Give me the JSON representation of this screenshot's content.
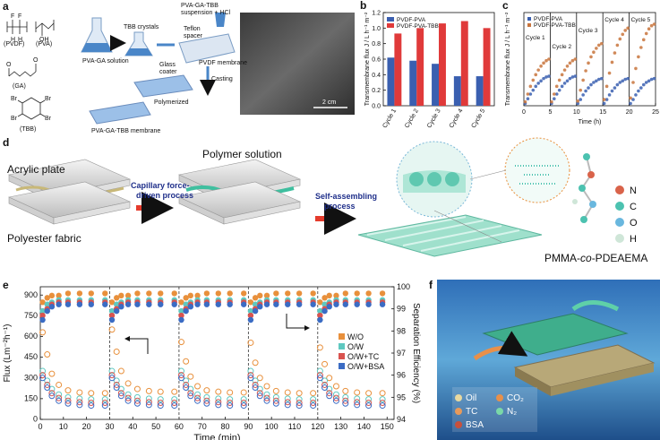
{
  "panel_labels": [
    "a",
    "b",
    "c",
    "d",
    "e",
    "f"
  ],
  "panel_a": {
    "monomers": [
      "(PVDF)",
      "(PVA)",
      "(GA)",
      "(TBB)"
    ],
    "atoms": [
      "F",
      "F",
      "H",
      "H",
      "OH",
      "O",
      "O",
      "Br",
      "Br",
      "Br",
      "Br"
    ],
    "steps": {
      "tbb": "TBB crystals",
      "solution": "PVA-GA solution",
      "suspension": [
        "PVA-GA-TBB",
        "suspension + HCl"
      ],
      "spacer": [
        "Teflon",
        "spacer"
      ],
      "coater": [
        "Glass",
        "coater"
      ],
      "membrane": "PVDF membrane",
      "casting": "Casting",
      "polymerized": "Polymerized",
      "product": "PVA-GA-TBB membrane"
    },
    "scale_bar": "2 cm"
  },
  "panel_d": {
    "labels": [
      "Acrylic plate",
      "Polyester fabric",
      "Polymer solution"
    ],
    "capillary": [
      "Capillary force-",
      "driven process"
    ],
    "assembling": [
      "Self-assembling",
      "process"
    ],
    "polymer": [
      "PMMA-",
      "co",
      "-PDEAEMA"
    ],
    "elements": [
      {
        "symbol": "N",
        "color": "#d9634a"
      },
      {
        "symbol": "C",
        "color": "#4cc2b0"
      },
      {
        "symbol": "O",
        "color": "#69b7de"
      },
      {
        "symbol": "H",
        "color": "#cfe6d8"
      }
    ]
  },
  "panel_f": {
    "legend": [
      {
        "label": "Oil",
        "color": "#e8d9a0"
      },
      {
        "label": "TC",
        "color": "#e89a5a"
      },
      {
        "label": "BSA",
        "color": "#c8503c"
      },
      {
        "label": "CO₂",
        "color": "#e8904a"
      },
      {
        "label": "N₂",
        "color": "#7ad8a8"
      }
    ]
  },
  "chart_data": [
    {
      "type": "bar",
      "categories": [
        "Cycle 1",
        "Cycle 2",
        "Cycle 3",
        "Cycle 4",
        "Cycle 5"
      ],
      "series": [
        {
          "name": "PVDF-PVA",
          "color": "#3a5fb0",
          "values": [
            0.62,
            0.58,
            0.54,
            0.38,
            0.38
          ]
        },
        {
          "name": "PVDF-PVA-TBB",
          "color": "#e03a3a",
          "values": [
            0.93,
            1.0,
            1.06,
            1.09,
            1.0
          ]
        }
      ],
      "y_label": "Transmembrane flux J / L h⁻¹ m⁻²",
      "ylim": [
        0,
        1.2
      ],
      "yticks": [
        {
          "value": 0,
          "label": "0.0"
        },
        0.2,
        0.4,
        0.6,
        0.8,
        {
          "value": 1,
          "label": "1.0"
        },
        1.2
      ],
      "legend": "upper left"
    },
    {
      "type": "line",
      "x_label": "Time (h)",
      "y_label": "Transmembrane flux J / L h⁻¹ m⁻²",
      "annotations": [
        "Cycle 1",
        "Cycle 2",
        "Cycle 3",
        "Cycle 4",
        "Cycle 5"
      ],
      "x": [
        0.25,
        0.75,
        1.25,
        1.75,
        2.25,
        2.75,
        3.25,
        3.75,
        4.25,
        4.75,
        5.25,
        5.75,
        6.25,
        6.75,
        7.25,
        7.75,
        8.25,
        8.75,
        9.25,
        9.75,
        10.25,
        10.75,
        11.25,
        11.75,
        12.25,
        12.75,
        13.25,
        13.75,
        14.25,
        14.75,
        15.25,
        15.75,
        16.25,
        16.75,
        17.25,
        17.75,
        18.25,
        18.75,
        19.25,
        19.75,
        20.25,
        20.75,
        21.25,
        21.75,
        22.25,
        22.75,
        23.25,
        23.75,
        24.25,
        24.75
      ],
      "series": [
        {
          "name": "PVDF-PVA",
          "color": "#3a5fb0",
          "values": [
            0.03,
            0.09,
            0.15,
            0.2,
            0.25,
            0.29,
            0.32,
            0.35,
            0.37,
            0.38,
            0.03,
            0.09,
            0.15,
            0.2,
            0.25,
            0.29,
            0.32,
            0.35,
            0.37,
            0.38,
            0.03,
            0.08,
            0.14,
            0.19,
            0.23,
            0.27,
            0.3,
            0.32,
            0.34,
            0.35,
            0.03,
            0.08,
            0.14,
            0.19,
            0.23,
            0.27,
            0.3,
            0.32,
            0.34,
            0.35,
            0.03,
            0.08,
            0.14,
            0.19,
            0.23,
            0.27,
            0.3,
            0.32,
            0.34,
            0.35
          ]
        },
        {
          "name": "PVDF-PVA-TBB",
          "color": "#c8743c",
          "values": [
            0.05,
            0.15,
            0.25,
            0.33,
            0.4,
            0.46,
            0.51,
            0.55,
            0.58,
            0.6,
            0.05,
            0.15,
            0.25,
            0.33,
            0.4,
            0.46,
            0.51,
            0.55,
            0.58,
            0.6,
            0.06,
            0.2,
            0.33,
            0.45,
            0.55,
            0.63,
            0.69,
            0.74,
            0.78,
            0.8,
            0.08,
            0.25,
            0.42,
            0.56,
            0.68,
            0.78,
            0.86,
            0.92,
            0.97,
            1.0,
            0.1,
            0.3,
            0.48,
            0.63,
            0.75,
            0.85,
            0.93,
            0.99,
            1.03,
            1.05
          ]
        }
      ],
      "xlim": [
        0,
        25
      ],
      "xticks": [
        0,
        5,
        10,
        15,
        20,
        25
      ],
      "ylim": [
        0,
        1.2
      ],
      "legend": "upper left"
    },
    {
      "type": "line",
      "x_label": "Time (min)",
      "y_label": "Flux (Lm⁻²h⁻¹)",
      "y2_label": "Separation Efficiency (%)",
      "x": [
        1,
        3,
        5,
        8,
        12,
        17,
        22,
        28,
        31,
        33,
        35,
        38,
        42,
        47,
        52,
        58,
        61,
        63,
        65,
        68,
        72,
        77,
        82,
        88,
        91,
        93,
        95,
        98,
        102,
        107,
        112,
        118,
        121,
        123,
        125,
        128,
        132,
        137,
        142,
        148
      ],
      "series": [
        {
          "name": "W/O",
          "color": "#e8903c",
          "values": [
            630,
            470,
            330,
            250,
            210,
            195,
            190,
            190,
            650,
            490,
            350,
            260,
            220,
            205,
            200,
            200,
            560,
            420,
            310,
            240,
            210,
            200,
            195,
            195,
            555,
            410,
            300,
            240,
            205,
            195,
            190,
            190,
            520,
            400,
            300,
            240,
            205,
            195,
            190,
            190
          ],
          "efficiency": [
            99.3,
            99.5,
            99.6,
            99.6,
            99.7,
            99.7,
            99.7,
            99.7,
            99.3,
            99.5,
            99.6,
            99.6,
            99.7,
            99.7,
            99.7,
            99.7,
            99.3,
            99.5,
            99.6,
            99.6,
            99.7,
            99.7,
            99.7,
            99.7,
            99.3,
            99.5,
            99.6,
            99.6,
            99.7,
            99.7,
            99.7,
            99.7,
            99.3,
            99.5,
            99.6,
            99.6,
            99.7,
            99.7,
            99.7,
            99.7
          ]
        },
        {
          "name": "O/W",
          "color": "#5fc8c0",
          "values": [
            350,
            280,
            220,
            180,
            160,
            150,
            145,
            145,
            350,
            280,
            220,
            180,
            160,
            150,
            145,
            145,
            350,
            280,
            220,
            180,
            160,
            150,
            145,
            145,
            350,
            280,
            220,
            180,
            160,
            150,
            145,
            145,
            350,
            280,
            220,
            180,
            160,
            150,
            145,
            145
          ],
          "efficiency": [
            98.9,
            99.2,
            99.3,
            99.4,
            99.4,
            99.4,
            99.4,
            99.4,
            98.9,
            99.2,
            99.3,
            99.4,
            99.4,
            99.4,
            99.4,
            99.4,
            98.9,
            99.2,
            99.3,
            99.4,
            99.4,
            99.4,
            99.4,
            99.4,
            98.9,
            99.2,
            99.3,
            99.4,
            99.4,
            99.4,
            99.4,
            99.4,
            98.9,
            99.2,
            99.3,
            99.4,
            99.4,
            99.4,
            99.4,
            99.4
          ]
        },
        {
          "name": "O/W+TC",
          "color": "#d9534f",
          "values": [
            320,
            250,
            190,
            155,
            135,
            125,
            120,
            120,
            320,
            250,
            190,
            155,
            135,
            125,
            120,
            120,
            320,
            250,
            190,
            155,
            135,
            125,
            120,
            120,
            320,
            250,
            190,
            155,
            135,
            125,
            120,
            120,
            320,
            250,
            190,
            155,
            135,
            125,
            120,
            120
          ],
          "efficiency": [
            98.7,
            99.0,
            99.2,
            99.3,
            99.3,
            99.3,
            99.3,
            99.3,
            98.7,
            99.0,
            99.2,
            99.3,
            99.3,
            99.3,
            99.3,
            99.3,
            98.7,
            99.0,
            99.2,
            99.3,
            99.3,
            99.3,
            99.3,
            99.3,
            98.7,
            99.0,
            99.2,
            99.3,
            99.3,
            99.3,
            99.3,
            99.3,
            98.7,
            99.0,
            99.2,
            99.3,
            99.3,
            99.3,
            99.3,
            99.3
          ]
        },
        {
          "name": "O/W+BSA",
          "color": "#3b6cc4",
          "values": [
            300,
            230,
            170,
            135,
            115,
            105,
            100,
            100,
            300,
            230,
            170,
            135,
            115,
            105,
            100,
            100,
            300,
            230,
            170,
            135,
            115,
            105,
            100,
            100,
            300,
            230,
            170,
            135,
            115,
            105,
            100,
            100,
            300,
            230,
            170,
            135,
            115,
            105,
            100,
            100
          ],
          "efficiency": [
            98.5,
            98.9,
            99.1,
            99.2,
            99.2,
            99.2,
            99.2,
            99.2,
            98.5,
            98.9,
            99.1,
            99.2,
            99.2,
            99.2,
            99.2,
            99.2,
            98.5,
            98.9,
            99.1,
            99.2,
            99.2,
            99.2,
            99.2,
            99.2,
            98.5,
            98.9,
            99.1,
            99.2,
            99.2,
            99.2,
            99.2,
            99.2,
            98.5,
            98.9,
            99.1,
            99.2,
            99.2,
            99.2,
            99.2,
            99.2
          ]
        }
      ],
      "xlim": [
        0,
        153
      ],
      "xticks": [
        0,
        10,
        20,
        30,
        40,
        50,
        60,
        70,
        80,
        90,
        100,
        110,
        120,
        130,
        140,
        150
      ],
      "ylim": [
        0,
        960
      ],
      "yticks": [
        0,
        150,
        300,
        450,
        600,
        750,
        900
      ],
      "y2lim": [
        94,
        100
      ],
      "y2ticks": [
        94,
        95,
        96,
        97,
        98,
        99,
        100
      ],
      "legend": "center right"
    }
  ]
}
